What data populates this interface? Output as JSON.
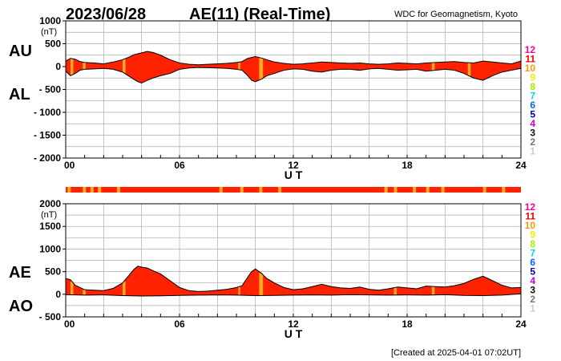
{
  "header": {
    "date": "2023/06/28",
    "title": "AE(11) (Real-Time)",
    "source": "WDC for Geomagnetism, Kyoto"
  },
  "footer": "[Created at 2025-04-01 07:02UT]",
  "colors": {
    "fill": "#ff2200",
    "highlight": "#ffaa22",
    "line": "#000000",
    "grid": "#aaaaaa"
  },
  "legend": {
    "labels": [
      "12",
      "11",
      "10",
      "9",
      "8",
      "7",
      "6",
      "5",
      "4",
      "3",
      "2",
      "1"
    ],
    "colors": [
      "#ff0099",
      "#ee0000",
      "#ff9900",
      "#eeee00",
      "#aaee00",
      "#00dddd",
      "#0066ff",
      "#0000aa",
      "#cc00cc",
      "#111111",
      "#777777",
      "#cccccc"
    ]
  },
  "chart_data": [
    {
      "type": "area",
      "name": "AU/AL",
      "left_labels": [
        "AU",
        "AL"
      ],
      "unit": "(nT)",
      "y_ticks": [
        "1000",
        "500",
        "0",
        "- 500",
        "- 1000",
        "- 1500",
        "- 2000"
      ],
      "ylim": [
        -2000,
        1000
      ],
      "x_ticks": [
        "00",
        "06",
        "12",
        "18",
        "24"
      ],
      "xlabel": "U T",
      "xlim": [
        0,
        24
      ],
      "grid": true,
      "upper": {
        "name": "AU",
        "x": [
          0,
          0.25,
          0.5,
          0.75,
          1,
          1.5,
          2,
          2.5,
          3,
          3.3,
          3.6,
          3.8,
          4,
          4.3,
          4.6,
          5,
          5.5,
          6,
          6.5,
          7,
          7.5,
          8,
          8.5,
          9,
          9.3,
          9.6,
          9.8,
          10,
          10.3,
          10.6,
          11,
          11.5,
          12,
          12.5,
          13,
          13.5,
          14,
          14.5,
          15,
          15.5,
          16,
          16.5,
          17,
          17.5,
          18,
          18.5,
          19,
          19.5,
          20,
          20.5,
          21,
          21.5,
          22,
          22.5,
          23,
          23.5,
          24
        ],
        "values": [
          120,
          180,
          160,
          110,
          90,
          80,
          60,
          100,
          150,
          200,
          260,
          280,
          300,
          330,
          310,
          250,
          150,
          80,
          50,
          40,
          50,
          60,
          70,
          90,
          110,
          180,
          200,
          220,
          190,
          150,
          100,
          70,
          50,
          60,
          80,
          100,
          90,
          80,
          70,
          80,
          60,
          50,
          60,
          80,
          70,
          60,
          80,
          90,
          100,
          110,
          90,
          80,
          120,
          100,
          80,
          60,
          120
        ]
      },
      "lower": {
        "name": "AL",
        "x": [
          0,
          0.25,
          0.5,
          0.75,
          1,
          1.5,
          2,
          2.5,
          3,
          3.3,
          3.6,
          3.8,
          4,
          4.3,
          4.6,
          5,
          5.5,
          6,
          6.5,
          7,
          7.5,
          8,
          8.5,
          9,
          9.3,
          9.6,
          9.8,
          10,
          10.3,
          10.6,
          11,
          11.5,
          12,
          12.5,
          13,
          13.5,
          14,
          14.5,
          15,
          15.5,
          16,
          16.5,
          17,
          17.5,
          18,
          18.5,
          19,
          19.5,
          20,
          20.5,
          21,
          21.5,
          22,
          22.5,
          23,
          23.5,
          24
        ],
        "values": [
          -100,
          -200,
          -150,
          -80,
          -60,
          -50,
          -40,
          -60,
          -120,
          -200,
          -280,
          -330,
          -360,
          -300,
          -250,
          -200,
          -150,
          -60,
          -30,
          -20,
          -25,
          -30,
          -40,
          -60,
          -80,
          -200,
          -300,
          -330,
          -280,
          -200,
          -150,
          -80,
          -50,
          -60,
          -100,
          -120,
          -80,
          -60,
          -60,
          -80,
          -50,
          -40,
          -60,
          -80,
          -70,
          -60,
          -100,
          -80,
          -60,
          -80,
          -150,
          -250,
          -300,
          -200,
          -120,
          -80,
          -40
        ]
      },
      "highlight_bands": [
        [
          0.25,
          0.4
        ],
        [
          0.9,
          1.05
        ],
        [
          3.0,
          3.15
        ],
        [
          9.1,
          9.2
        ],
        [
          10.2,
          10.4
        ],
        [
          19.3,
          19.45
        ],
        [
          21.2,
          21.35
        ]
      ]
    },
    {
      "type": "bar",
      "name": "station-count strip",
      "x_range": [
        0,
        24
      ],
      "base_color": "#ff2200",
      "marks_color": "#ffaa22",
      "marks": [
        0.1,
        0.9,
        1.3,
        1.7,
        2.7,
        8.1,
        9.2,
        10.2,
        11.2,
        16.8,
        17.3,
        18.3,
        19.0,
        19.8,
        22.0,
        23.0
      ]
    },
    {
      "type": "area",
      "name": "AE/AO",
      "left_labels": [
        "AE",
        "AO"
      ],
      "unit": "(nT)",
      "y_ticks": [
        "2000",
        "1500",
        "1000",
        "500",
        "0",
        "- 500"
      ],
      "ylim": [
        -500,
        2000
      ],
      "x_ticks": [
        "00",
        "06",
        "12",
        "18",
        "24"
      ],
      "xlabel": "U T",
      "xlim": [
        0,
        24
      ],
      "grid": true,
      "upper": {
        "name": "AE",
        "x": [
          0,
          0.25,
          0.5,
          0.75,
          1,
          1.5,
          2,
          2.5,
          3,
          3.3,
          3.6,
          3.8,
          4,
          4.3,
          4.6,
          5,
          5.5,
          6,
          6.5,
          7,
          7.5,
          8,
          8.5,
          9,
          9.3,
          9.6,
          9.8,
          10,
          10.3,
          10.6,
          11,
          11.5,
          12,
          12.5,
          13,
          13.5,
          14,
          14.5,
          15,
          15.5,
          16,
          16.5,
          17,
          17.5,
          18,
          18.5,
          19,
          19.5,
          20,
          20.5,
          21,
          21.5,
          22,
          22.5,
          23,
          23.5,
          24
        ],
        "values": [
          350,
          320,
          200,
          150,
          100,
          90,
          80,
          130,
          250,
          400,
          550,
          620,
          600,
          580,
          520,
          450,
          300,
          150,
          80,
          60,
          70,
          90,
          110,
          150,
          190,
          380,
          500,
          560,
          470,
          350,
          250,
          150,
          100,
          120,
          170,
          220,
          170,
          140,
          130,
          160,
          110,
          90,
          120,
          160,
          140,
          120,
          180,
          170,
          160,
          190,
          240,
          330,
          400,
          300,
          200,
          140,
          150
        ]
      },
      "lower": {
        "name": "AO",
        "x": [
          0,
          1,
          2,
          3,
          4,
          5,
          6,
          7,
          8,
          9,
          10,
          11,
          12,
          13,
          14,
          15,
          16,
          17,
          18,
          19,
          20,
          21,
          22,
          23,
          24
        ],
        "values": [
          -10,
          -20,
          -15,
          -30,
          -40,
          -35,
          -25,
          -20,
          -15,
          -20,
          -30,
          -25,
          -20,
          -15,
          -20,
          -10,
          -15,
          -20,
          -15,
          -20,
          -10,
          -25,
          -30,
          -20,
          10
        ]
      },
      "highlight_bands": [
        [
          0.25,
          0.4
        ],
        [
          0.9,
          1.05
        ],
        [
          3.0,
          3.15
        ],
        [
          9.1,
          9.2
        ],
        [
          10.2,
          10.4
        ],
        [
          17.3,
          17.45
        ],
        [
          19.3,
          19.45
        ]
      ]
    }
  ]
}
